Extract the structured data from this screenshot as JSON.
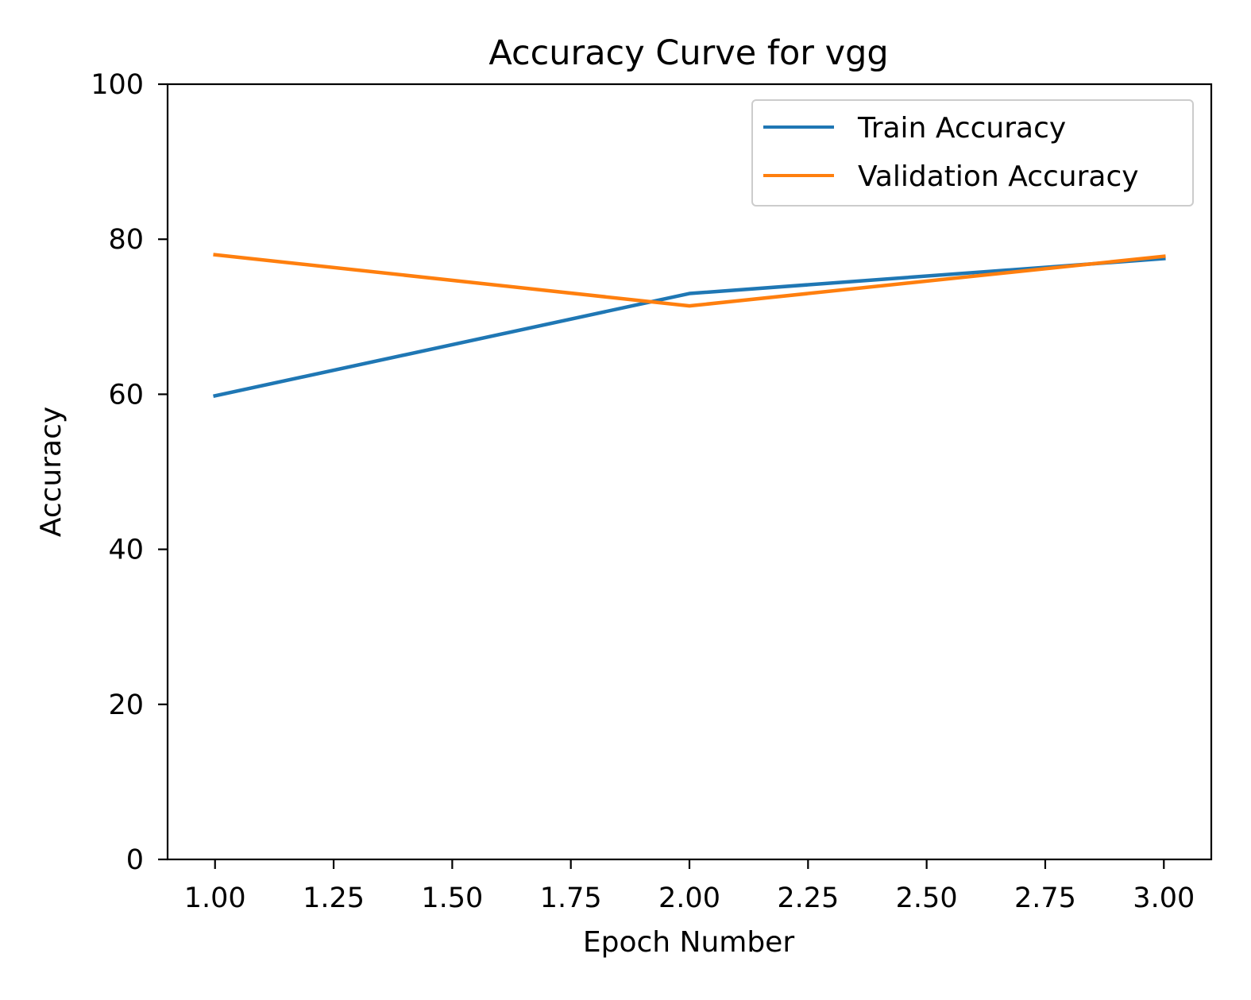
{
  "chart_data": {
    "type": "line",
    "title": "Accuracy Curve for  vgg",
    "xlabel": "Epoch Number",
    "ylabel": "Accuracy",
    "xlim": [
      0.9,
      3.1
    ],
    "ylim": [
      0,
      100
    ],
    "xticks": [
      1.0,
      1.25,
      1.5,
      1.75,
      2.0,
      2.25,
      2.5,
      2.75,
      3.0
    ],
    "xtick_labels": [
      "1.00",
      "1.25",
      "1.50",
      "1.75",
      "2.00",
      "2.25",
      "2.50",
      "2.75",
      "3.00"
    ],
    "yticks": [
      0,
      20,
      40,
      60,
      80,
      100
    ],
    "ytick_labels": [
      "0",
      "20",
      "40",
      "60",
      "80",
      "100"
    ],
    "grid": false,
    "legend_position": "top-right",
    "x": [
      1,
      2,
      3
    ],
    "series": [
      {
        "name": "Train Accuracy",
        "color": "#1f77b4",
        "values": [
          59.8,
          73.0,
          77.5
        ]
      },
      {
        "name": "Validation Accuracy",
        "color": "#ff7f0e",
        "values": [
          78.0,
          71.4,
          77.8
        ]
      }
    ]
  }
}
